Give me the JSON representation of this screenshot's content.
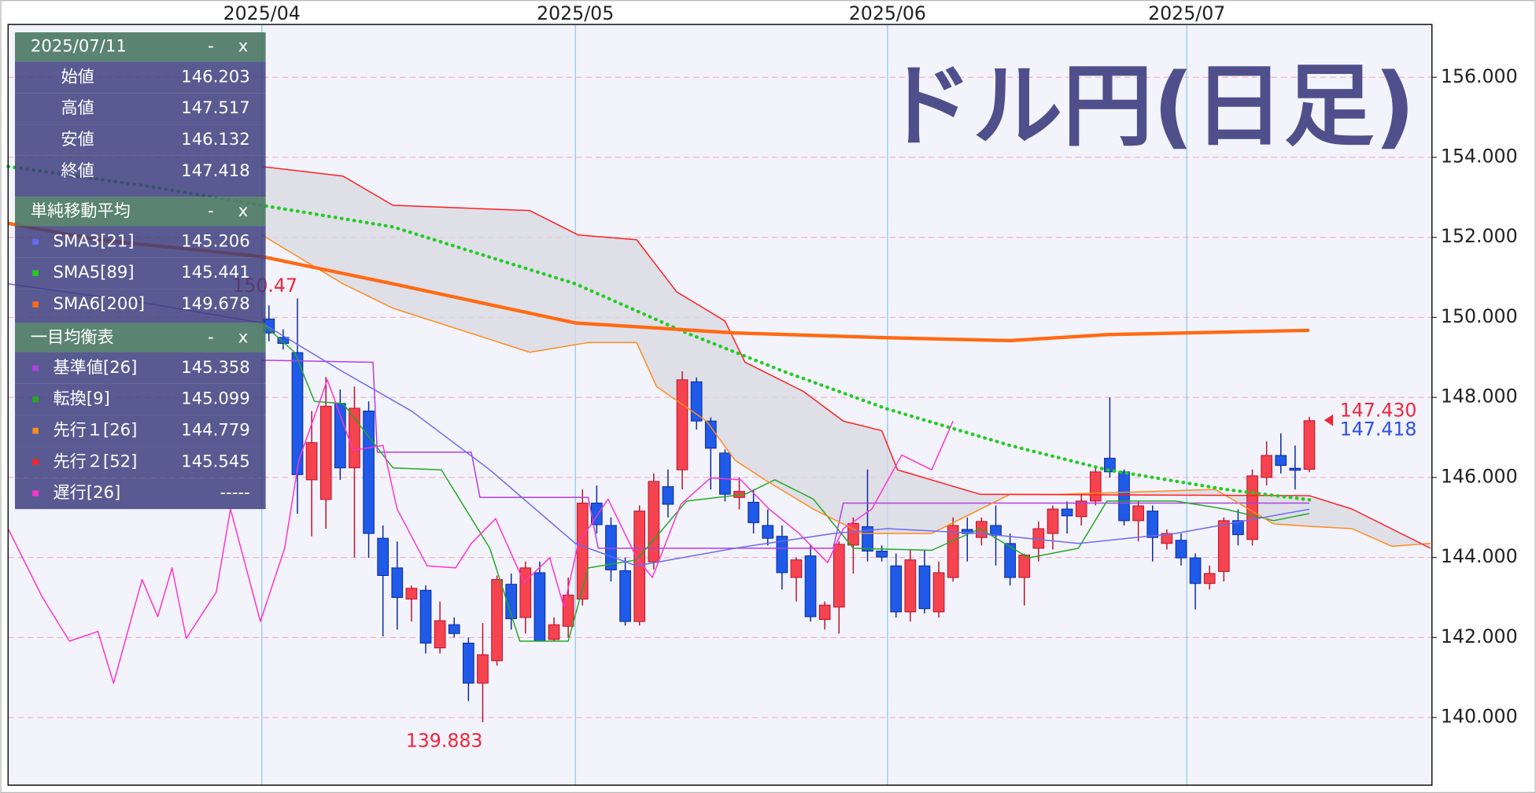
{
  "chart_data": {
    "type": "candlestick",
    "title": "ドル円(日足)",
    "categories": [
      null,
      null,
      null,
      null,
      null,
      null,
      null,
      null,
      null,
      null,
      null,
      null,
      null,
      null,
      null,
      null,
      null,
      null,
      null,
      null,
      null,
      null,
      null,
      null,
      null,
      null,
      null,
      null,
      null,
      null,
      null,
      null,
      null,
      null,
      null,
      null,
      null,
      null,
      null,
      null,
      null,
      null,
      null,
      null,
      null,
      null,
      null,
      null,
      null,
      null,
      null,
      null,
      null,
      null,
      null,
      null,
      null,
      null,
      null,
      null,
      null,
      null,
      null,
      null,
      null,
      null,
      null,
      null,
      null,
      null,
      null,
      null,
      null,
      null
    ],
    "candles": {
      "open": [
        149.96,
        149.5,
        149.12,
        145.94,
        145.45,
        147.85,
        146.24,
        147.66,
        144.48,
        143.74,
        142.96,
        143.18,
        141.74,
        142.32,
        141.86,
        140.86,
        141.42,
        143.33,
        142.5,
        143.62,
        141.95,
        142.28,
        142.96,
        145.36,
        144.8,
        143.67,
        142.4,
        143.89,
        145.77,
        146.19,
        148.39,
        147.41,
        146.61,
        145.5,
        145.38,
        144.8,
        144.53,
        143.5,
        144.04,
        142.45,
        142.76,
        144.31,
        144.77,
        144.16,
        143.79,
        142.64,
        143.79,
        142.64,
        143.5,
        144.7,
        144.5,
        144.8,
        144.35,
        143.5,
        144.23,
        144.6,
        145.21,
        145.02,
        145.41,
        146.48,
        146.14,
        144.92,
        145.16,
        144.35,
        144.43,
        143.99,
        143.35,
        143.65,
        144.92,
        144.45,
        146.0,
        146.55,
        146.23,
        146.203
      ],
      "high": [
        150.3,
        149.7,
        150.47,
        147.66,
        148.51,
        148.2,
        148.27,
        147.9,
        144.8,
        144.4,
        143.3,
        143.3,
        142.9,
        142.5,
        142.0,
        142.36,
        143.55,
        143.6,
        143.9,
        143.9,
        142.5,
        143.5,
        145.7,
        145.8,
        145.0,
        144.0,
        145.3,
        146.1,
        146.2,
        148.652,
        148.5,
        147.5,
        146.7,
        146.0,
        145.7,
        145.2,
        144.8,
        144.0,
        144.3,
        142.9,
        144.4,
        145.0,
        146.2,
        144.3,
        144.1,
        144.2,
        144.2,
        143.9,
        145.0,
        145.0,
        145.0,
        145.3,
        144.6,
        144.1,
        144.9,
        145.3,
        145.4,
        145.6,
        146.3,
        148.0,
        146.2,
        145.4,
        145.3,
        144.7,
        144.6,
        144.1,
        143.8,
        145.0,
        145.2,
        146.2,
        146.9,
        147.1,
        146.8,
        147.517
      ],
      "low": [
        149.4,
        149.2,
        145.09,
        144.53,
        144.72,
        145.94,
        144.0,
        143.99,
        142.03,
        142.2,
        142.4,
        141.6,
        141.6,
        142.0,
        140.41,
        139.883,
        141.3,
        142.2,
        142.1,
        141.9,
        141.9,
        142.0,
        142.8,
        144.6,
        143.4,
        142.3,
        142.3,
        143.7,
        145.0,
        145.7,
        147.2,
        145.7,
        145.4,
        145.2,
        144.6,
        144.3,
        143.2,
        142.9,
        142.4,
        142.2,
        142.1,
        143.6,
        143.9,
        143.9,
        142.5,
        142.4,
        142.6,
        142.5,
        143.4,
        143.9,
        144.3,
        143.8,
        143.3,
        142.8,
        143.9,
        144.2,
        144.6,
        144.8,
        145.3,
        146.0,
        144.8,
        144.4,
        143.9,
        144.2,
        143.8,
        142.7,
        143.2,
        143.4,
        144.3,
        144.3,
        145.8,
        146.1,
        145.7,
        146.132
      ],
      "close": [
        149.61,
        149.35,
        146.07,
        146.87,
        147.78,
        146.24,
        147.73,
        144.6,
        143.55,
        143.0,
        143.23,
        141.86,
        142.42,
        142.1,
        140.86,
        141.57,
        143.45,
        142.47,
        143.74,
        141.91,
        142.32,
        143.06,
        145.36,
        144.82,
        143.69,
        142.4,
        145.16,
        145.9,
        145.33,
        148.44,
        147.41,
        146.73,
        145.58,
        145.65,
        144.87,
        144.48,
        143.62,
        143.94,
        142.52,
        142.81,
        144.33,
        144.85,
        144.16,
        144.01,
        142.64,
        143.94,
        142.72,
        143.62,
        144.8,
        144.6,
        144.9,
        144.55,
        143.5,
        144.06,
        144.72,
        145.21,
        145.04,
        145.41,
        146.14,
        146.14,
        144.92,
        145.29,
        144.5,
        144.6,
        143.99,
        143.35,
        143.6,
        144.92,
        144.57,
        146.04,
        146.55,
        146.3,
        146.18,
        147.418
      ],
      "up_color": "#f5434f",
      "up_border": "#b8142a",
      "down_color": "#1f5ae8",
      "down_border": "#0b2a9a"
    },
    "sma": [
      {
        "label": "SMA3[21]",
        "color": "#6a6af5",
        "width": 1.2,
        "x": [
          -18.3,
          -8.5,
          -0.5,
          5.2,
          10.0,
          15.5,
          21.5,
          25.8,
          32.7,
          39.6,
          43.4,
          49.9,
          56.8,
          63.6,
          73
        ],
        "values": [
          150.84,
          150.35,
          149.86,
          148.64,
          147.66,
          146.19,
          144.35,
          143.79,
          144.23,
          144.6,
          144.72,
          144.6,
          144.35,
          144.6,
          145.206
        ]
      },
      {
        "label": "SMA5[89]",
        "color": "#22cc22",
        "width": 3.5,
        "style": "dotted",
        "x": [
          -18.3,
          -8.5,
          -0.5,
          8.7,
          21.5,
          29.3,
          36.2,
          43.4,
          52.0,
          58.8,
          67.1,
          73
        ],
        "values": [
          153.77,
          153.28,
          152.8,
          152.26,
          150.84,
          149.61,
          148.64,
          147.71,
          146.8,
          146.19,
          145.7,
          145.441
        ]
      },
      {
        "label": "SMA6[200]",
        "color": "#ff6a13",
        "width": 3.5,
        "x": [
          -18.3,
          -12.0,
          -0.5,
          8.7,
          21.5,
          32.7,
          43.4,
          52.0,
          58.8,
          73
        ],
        "values": [
          152.35,
          151.94,
          151.52,
          150.84,
          149.86,
          149.61,
          149.49,
          149.42,
          149.57,
          149.678
        ]
      }
    ],
    "ichimoku": [
      {
        "label": "基準値[26]",
        "color": "#b040e0",
        "width": 1.2,
        "x": [
          -0.5,
          7.3,
          7.6,
          14.2,
          14.8,
          22.4,
          23.1,
          39.6,
          40.3,
          73
        ],
        "values": [
          148.93,
          148.88,
          146.63,
          146.63,
          145.5,
          145.5,
          144.23,
          144.23,
          145.358,
          145.358
        ]
      },
      {
        "label": "転換[9]",
        "color": "#22aa22",
        "width": 1.2,
        "x": [
          -0.5,
          1.8,
          3.2,
          5.2,
          8.7,
          12.1,
          15.5,
          17.6,
          21.0,
          22.4,
          25.8,
          29.3,
          33.4,
          35.5,
          38.2,
          41.0,
          46.5,
          49.9,
          53.3,
          56.8,
          58.8,
          63.6,
          67.1,
          70.5,
          73
        ],
        "values": [
          149.86,
          149.13,
          147.9,
          147.85,
          146.24,
          146.19,
          144.23,
          141.91,
          141.91,
          143.74,
          143.94,
          145.41,
          145.58,
          145.94,
          145.46,
          144.23,
          144.18,
          144.72,
          143.99,
          144.23,
          145.41,
          145.41,
          145.21,
          144.92,
          145.099
        ]
      },
      {
        "label": "先行１[26]",
        "color": "#ff8c1a",
        "width": 1.2,
        "x": [
          -0.5,
          5.2,
          8.7,
          18.3,
          22.4,
          25.8,
          27.2,
          30.7,
          32.7,
          34.8,
          38.2,
          41.6,
          46.5,
          52.0,
          55.4,
          66.4,
          70.5,
          73,
          76.0,
          78.8,
          81.5
        ],
        "values": [
          152.06,
          150.84,
          150.23,
          149.13,
          149.37,
          149.37,
          148.27,
          147.41,
          146.43,
          145.94,
          145.21,
          144.6,
          144.6,
          145.58,
          145.58,
          145.7,
          144.84,
          144.779,
          144.72,
          144.28,
          144.35
        ]
      },
      {
        "label": "先行２[52]",
        "color": "#ff2020",
        "width": 1.2,
        "x": [
          -0.5,
          5.2,
          8.7,
          18.3,
          21.7,
          25.8,
          28.6,
          32.0,
          33.4,
          37.5,
          40.3,
          43.0,
          44.1,
          49.9,
          73,
          76.0,
          81.5
        ],
        "values": [
          153.77,
          153.53,
          152.8,
          152.67,
          152.06,
          151.94,
          150.64,
          149.91,
          148.88,
          148.15,
          147.41,
          147.17,
          146.19,
          145.58,
          145.545,
          145.21,
          144.23
        ]
      },
      {
        "label": "遅行[26]",
        "color": "#ff33cc",
        "width": 1.2,
        "x": [
          -18.3,
          -15.9,
          -14.0,
          -12.0,
          -10.9,
          -8.9,
          -7.8,
          -6.8,
          -5.8,
          -3.7,
          -2.7,
          -0.6,
          1.1,
          2.1,
          4.1,
          5.9,
          8.0,
          9.0,
          11.1,
          13.1,
          14.2,
          15.9,
          17.9,
          19.7,
          20.7,
          21.7,
          23.8,
          25.8,
          26.9,
          28.9,
          31.0,
          33.1,
          35.1,
          37.2,
          39.2,
          40.3,
          42.3,
          44.4,
          46.5,
          48.0
        ],
        "values": [
          144.72,
          143.01,
          141.91,
          142.15,
          140.86,
          143.45,
          142.52,
          143.74,
          141.98,
          143.13,
          145.21,
          142.4,
          144.23,
          146.43,
          148.44,
          146.68,
          146.8,
          145.21,
          143.79,
          143.74,
          144.35,
          144.97,
          143.38,
          143.99,
          142.76,
          144.35,
          145.46,
          143.99,
          143.5,
          145.33,
          145.99,
          145.94,
          145.21,
          144.6,
          143.87,
          144.72,
          145.21,
          146.56,
          146.19,
          147.41
        ]
      }
    ],
    "cloud_color": "#d8d8e2",
    "extreme_label_color": "#f0263a",
    "close_label_color": "#2a4fe8",
    "price_marker": {
      "value": 147.43,
      "label": "147.430",
      "color": "#f0263a"
    },
    "xlim": [
      -18.3,
      81.6
    ],
    "xticks": [
      {
        "value": -0.5,
        "label": "2025/04"
      },
      {
        "value": 21.5,
        "label": "2025/05"
      },
      {
        "value": 43.4,
        "label": "2025/06"
      },
      {
        "value": 64.4,
        "label": "2025/07"
      }
    ],
    "ylim": [
      138.31,
      157.32
    ],
    "yticks": [
      {
        "value": 140,
        "label": "140.000"
      },
      {
        "value": 142,
        "label": "142.000"
      },
      {
        "value": 144,
        "label": "144.000"
      },
      {
        "value": 146,
        "label": "146.000"
      },
      {
        "value": 148,
        "label": "148.000"
      },
      {
        "value": 150,
        "label": "150.000"
      },
      {
        "value": 152,
        "label": "152.000"
      },
      {
        "value": 154,
        "label": "154.000"
      },
      {
        "value": 156,
        "label": "156.000"
      }
    ],
    "grid": true
  },
  "panel": {
    "date": "2025/07/11",
    "minimize": "-",
    "close": "x",
    "ohlc_labels": {
      "open": "始値",
      "high": "高値",
      "low": "安値",
      "close": "終値"
    },
    "sma_title": "単純移動平均",
    "ichimoku_title": "一目均衡表",
    "no_value_label": "-----"
  }
}
